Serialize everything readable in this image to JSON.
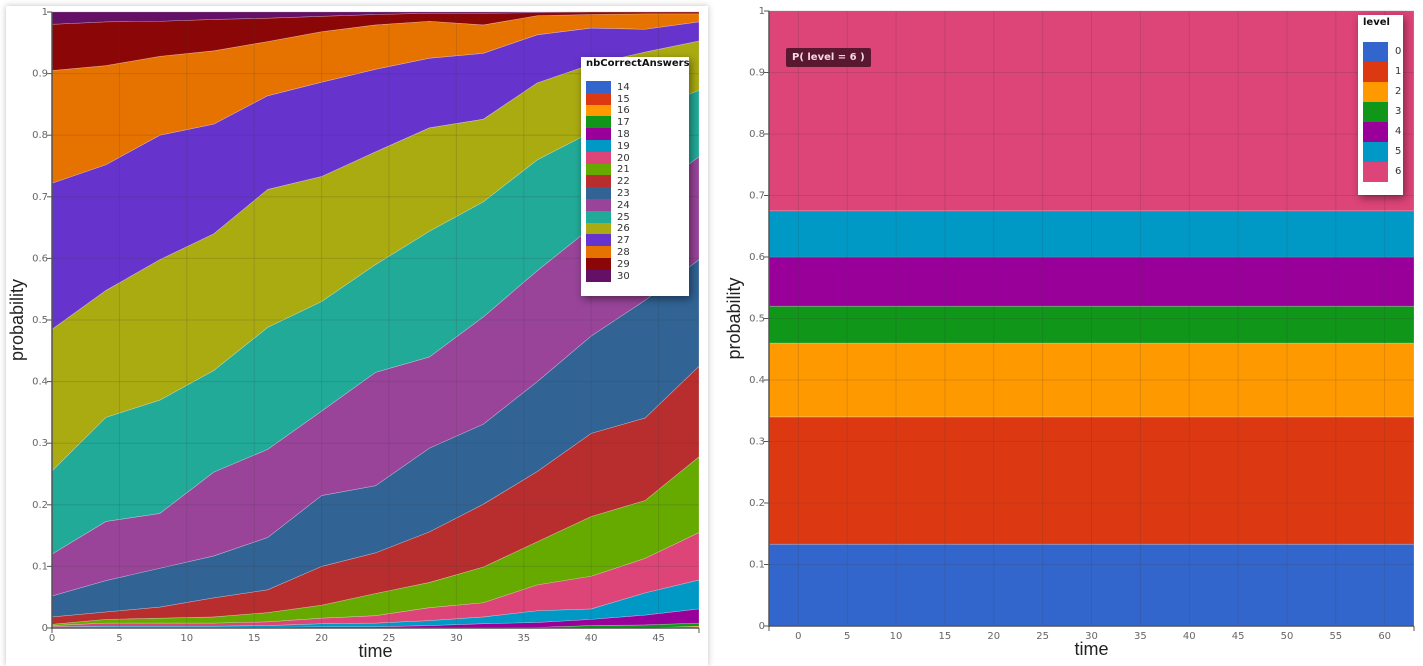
{
  "chart_data": [
    {
      "type": "area",
      "stacked": true,
      "xlabel": "time",
      "ylabel": "probability",
      "xlim": [
        0,
        48
      ],
      "ylim": [
        0,
        1
      ],
      "xticks": [
        0,
        5,
        10,
        15,
        20,
        25,
        30,
        35,
        40,
        45
      ],
      "yticks": [
        "0",
        "0.1",
        "0.2",
        "0.3",
        "0.4",
        "0.5",
        "0.6",
        "0.7",
        "0.8",
        "0.9",
        "1"
      ],
      "grid": true,
      "legend_title": "nbCorrectAnswers",
      "legend_position": "top-right",
      "x": [
        0,
        4,
        8,
        12,
        16,
        20,
        24,
        28,
        32,
        36,
        40,
        44,
        48
      ],
      "series": [
        {
          "name": "14",
          "color": "#3366cc",
          "values": [
            0,
            0,
            0,
            0,
            0,
            0,
            0,
            0,
            0,
            0,
            0,
            0,
            0
          ]
        },
        {
          "name": "15",
          "color": "#dc3912",
          "values": [
            0,
            0,
            0,
            0,
            0,
            0,
            0,
            0,
            0,
            0,
            0,
            0,
            0
          ]
        },
        {
          "name": "16",
          "color": "#ff9900",
          "values": [
            0,
            0,
            0,
            0,
            0,
            0,
            0,
            0,
            0,
            0,
            0,
            0,
            0.003
          ]
        },
        {
          "name": "17",
          "color": "#109618",
          "values": [
            0,
            0,
            0,
            0,
            0,
            0,
            0,
            0,
            0,
            0.001,
            0.004,
            0.005,
            0.005
          ]
        },
        {
          "name": "18",
          "color": "#990099",
          "values": [
            0.001,
            0.001,
            0.001,
            0.001,
            0.001,
            0.002,
            0.002,
            0.004,
            0.007,
            0.008,
            0.01,
            0.016,
            0.023
          ]
        },
        {
          "name": "19",
          "color": "#0099c6",
          "values": [
            0.001,
            0.002,
            0.002,
            0.002,
            0.003,
            0.005,
            0.006,
            0.008,
            0.011,
            0.019,
            0.017,
            0.036,
            0.047
          ]
        },
        {
          "name": "20",
          "color": "#dd4477",
          "values": [
            0.002,
            0.005,
            0.005,
            0.005,
            0.006,
            0.009,
            0.012,
            0.021,
            0.023,
            0.042,
            0.053,
            0.056,
            0.077
          ]
        },
        {
          "name": "21",
          "color": "#66aa00",
          "values": [
            0.002,
            0.006,
            0.008,
            0.01,
            0.015,
            0.021,
            0.036,
            0.041,
            0.058,
            0.07,
            0.097,
            0.094,
            0.123
          ]
        },
        {
          "name": "22",
          "color": "#b82e2e",
          "values": [
            0.012,
            0.012,
            0.018,
            0.031,
            0.037,
            0.063,
            0.066,
            0.082,
            0.102,
            0.114,
            0.135,
            0.134,
            0.147
          ]
        },
        {
          "name": "23",
          "color": "#316395",
          "values": [
            0.034,
            0.051,
            0.063,
            0.068,
            0.085,
            0.115,
            0.109,
            0.136,
            0.13,
            0.146,
            0.158,
            0.191,
            0.173
          ]
        },
        {
          "name": "24",
          "color": "#994499",
          "values": [
            0.068,
            0.096,
            0.089,
            0.136,
            0.143,
            0.137,
            0.184,
            0.148,
            0.174,
            0.18,
            0.176,
            0.168,
            0.167
          ]
        },
        {
          "name": "25",
          "color": "#22aa99",
          "values": [
            0.135,
            0.169,
            0.184,
            0.165,
            0.198,
            0.178,
            0.175,
            0.204,
            0.187,
            0.18,
            0.155,
            0.138,
            0.108
          ]
        },
        {
          "name": "26",
          "color": "#aaaa11",
          "values": [
            0.23,
            0.206,
            0.228,
            0.222,
            0.224,
            0.203,
            0.183,
            0.168,
            0.134,
            0.125,
            0.11,
            0.097,
            0.08
          ]
        },
        {
          "name": "27",
          "color": "#6633cc",
          "values": [
            0.237,
            0.204,
            0.202,
            0.178,
            0.152,
            0.153,
            0.134,
            0.113,
            0.107,
            0.078,
            0.059,
            0.037,
            0.031
          ]
        },
        {
          "name": "28",
          "color": "#e67300",
          "values": [
            0.183,
            0.161,
            0.128,
            0.119,
            0.088,
            0.082,
            0.072,
            0.06,
            0.046,
            0.031,
            0.022,
            0.025,
            0.013
          ]
        },
        {
          "name": "29",
          "color": "#8b0707",
          "values": [
            0.075,
            0.071,
            0.057,
            0.051,
            0.038,
            0.025,
            0.017,
            0.013,
            0.019,
            0.005,
            0.004,
            0.003,
            0.003
          ]
        },
        {
          "name": "30",
          "color": "#651067",
          "values": [
            0.02,
            0.016,
            0.015,
            0.012,
            0.01,
            0.007,
            0.004,
            0.002,
            0.002,
            0.001,
            0,
            0,
            0
          ]
        }
      ]
    },
    {
      "type": "area",
      "stacked": true,
      "xlabel": "time",
      "ylabel": "probability",
      "xlim": [
        -3,
        63
      ],
      "ylim": [
        0,
        1
      ],
      "xticks": [
        0,
        5,
        10,
        15,
        20,
        25,
        30,
        35,
        40,
        45,
        50,
        55,
        60
      ],
      "yticks": [
        "0",
        "0.1",
        "0.2",
        "0.3",
        "0.4",
        "0.5",
        "0.6",
        "0.7",
        "0.8",
        "0.9",
        "1"
      ],
      "grid": true,
      "legend_title": "level",
      "legend_position": "top-right",
      "x": [
        -3,
        63
      ],
      "series": [
        {
          "name": "0",
          "color": "#3366cc",
          "values": [
            0.133,
            0.133
          ]
        },
        {
          "name": "1",
          "color": "#dc3912",
          "values": [
            0.207,
            0.207
          ]
        },
        {
          "name": "2",
          "color": "#ff9900",
          "values": [
            0.12,
            0.12
          ]
        },
        {
          "name": "3",
          "color": "#109618",
          "values": [
            0.06,
            0.06
          ]
        },
        {
          "name": "4",
          "color": "#990099",
          "values": [
            0.08,
            0.08
          ]
        },
        {
          "name": "5",
          "color": "#0099c6",
          "values": [
            0.075,
            0.075
          ]
        },
        {
          "name": "6",
          "color": "#dd4477",
          "values": [
            0.325,
            0.325
          ]
        }
      ],
      "tooltip": "P( level = 6 )"
    }
  ]
}
